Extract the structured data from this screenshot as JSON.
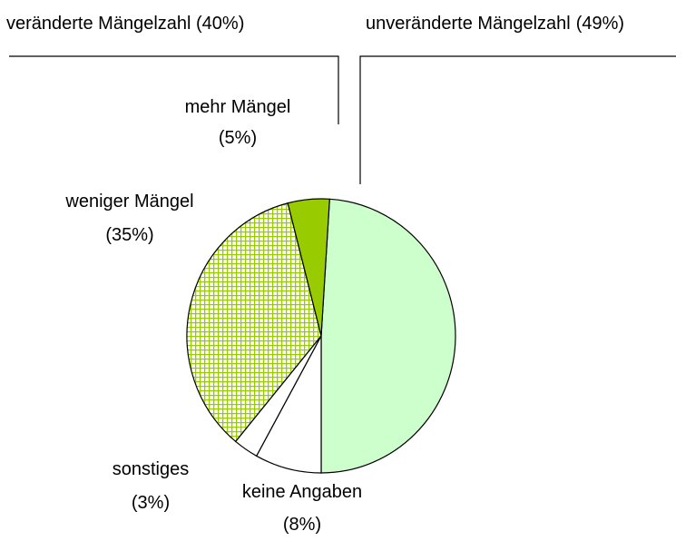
{
  "chart_data": {
    "type": "pie",
    "categories": [
      "unveränderte Mängelzahl",
      "keine Angaben",
      "sonstiges",
      "weniger Mängel",
      "mehr Mängel"
    ],
    "values": [
      49,
      8,
      3,
      35,
      5
    ],
    "value_labels": [
      "(49%)",
      "(8%)",
      "(3%)",
      "(35%)",
      "(5%)"
    ],
    "colors": [
      "#ccffcc",
      "#ffffff",
      "#ffffff",
      "#99cc00",
      "#99cc00"
    ],
    "hatch": [
      false,
      false,
      false,
      true,
      false
    ],
    "annotations": [
      "veränderte Mängelzahl (40%)"
    ]
  }
}
